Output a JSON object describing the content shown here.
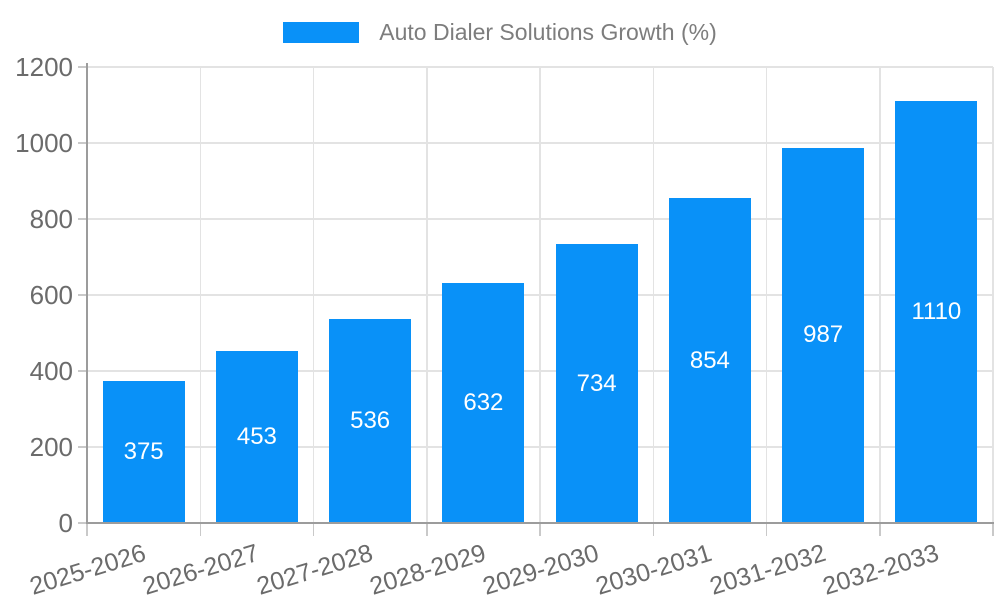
{
  "chart_data": {
    "type": "bar",
    "title": "Auto Dialer Solutions Growth (%)",
    "categories": [
      "2025-2026",
      "2026-2027",
      "2027-2028",
      "2028-2029",
      "2029-2030",
      "2030-2031",
      "2031-2032",
      "2032-2033"
    ],
    "values": [
      375,
      453,
      536,
      632,
      734,
      854,
      987,
      1110
    ],
    "xlabel": "",
    "ylabel": "",
    "ylim": [
      0,
      1200
    ],
    "yticks": [
      0,
      200,
      400,
      600,
      800,
      1000,
      1200
    ],
    "grid": true,
    "legend_position": "top-center",
    "value_labels_inside_bars": true,
    "x_label_rotation_deg": -17
  },
  "legend": {
    "label": "Auto Dialer Solutions Growth (%)"
  },
  "colors": {
    "bar": "#0991F8",
    "bar_value_text": "#FFFFFF",
    "grid": "#E3E3E3",
    "axis": "#9C9C9C",
    "tick_mark": "#C9C9C9",
    "tick_text": "#6B6B6B",
    "legend_text": "#7D7D7D",
    "background": "#FFFFFF"
  }
}
